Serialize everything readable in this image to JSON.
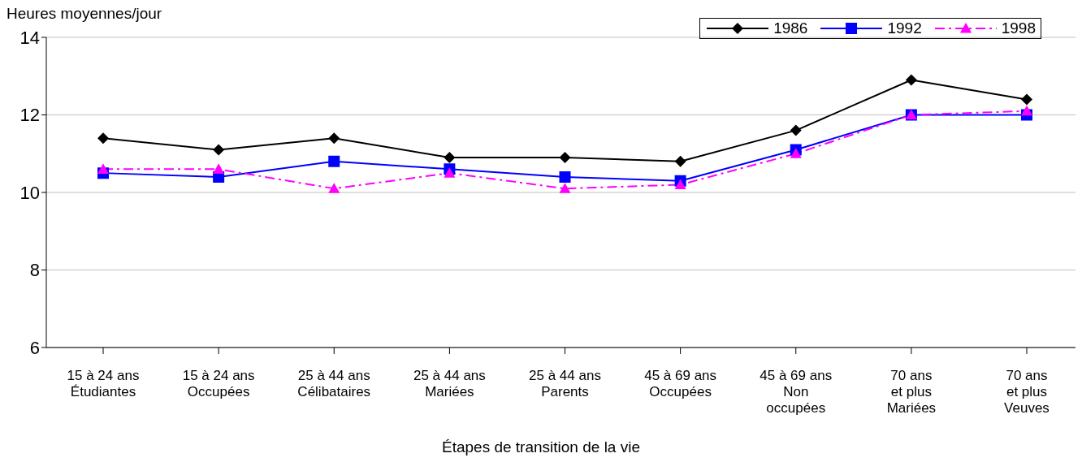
{
  "chart_data": {
    "type": "line",
    "ylabel": "Heures moyennes/jour",
    "xlabel": "Étapes de transition de la vie",
    "categories": [
      "15 à 24 ans\nÉtudiantes",
      "15 à 24 ans\nOccupées",
      "25 à 44 ans\nCélibataires",
      "25 à 44 ans\nMariées",
      "25 à 44 ans\nParents",
      "45 à 69 ans\nOccupées",
      "45 à 69 ans\nNon\noccupées",
      "70 ans\net plus\nMariées",
      "70 ans\net plus\nVeuves"
    ],
    "series": [
      {
        "name": "1986",
        "color": "#000000",
        "marker": "diamond",
        "line_style": "solid",
        "values": [
          11.4,
          11.1,
          11.4,
          10.9,
          10.9,
          10.8,
          11.6,
          12.9,
          12.4
        ]
      },
      {
        "name": "1992",
        "color": "#0000ff",
        "marker": "square",
        "line_style": "solid",
        "values": [
          10.5,
          10.4,
          10.8,
          10.6,
          10.4,
          10.3,
          11.1,
          12.0,
          12.0
        ]
      },
      {
        "name": "1998",
        "color": "#ff00ff",
        "marker": "triangle",
        "line_style": "dashed",
        "values": [
          10.6,
          10.6,
          10.1,
          10.5,
          10.1,
          10.2,
          11.0,
          12.0,
          12.1
        ]
      }
    ],
    "ylim": [
      6,
      14
    ],
    "yticks": [
      6,
      8,
      10,
      12,
      14
    ],
    "grid": "y",
    "legend": "top right"
  }
}
